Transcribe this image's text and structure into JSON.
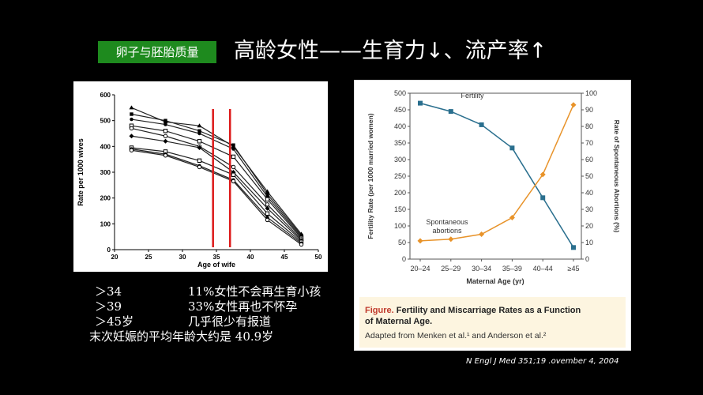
{
  "slide": {
    "badge": "卵子与胚胎质量",
    "title": "高龄女性——生育力↓、流产率↑",
    "notes": [
      {
        "k": "＞34",
        "v": "11%女性不会再生育小孩"
      },
      {
        "k": "＞39",
        "v": "33%女性再也不怀孕"
      },
      {
        "k": "＞45岁",
        "v": "几乎很少有报道"
      }
    ],
    "notes_last": "末次妊娠的平均年龄大约是 40.9岁",
    "citation": "N Engl J Med 351;19 .ovember 4, 2004",
    "colors": {
      "badge": "#1e8a1e",
      "red_line": "#dd1a1a",
      "fertility": "#2a6f8e",
      "abortion": "#e8932a"
    }
  },
  "chart_data": [
    {
      "type": "line",
      "xlabel": "Age of wife",
      "ylabel": "Rate per 1000 wives",
      "xlim": [
        20,
        50
      ],
      "ylim": [
        0,
        600
      ],
      "xticks": [
        20,
        25,
        30,
        35,
        40,
        45,
        50
      ],
      "yticks": [
        0,
        100,
        200,
        300,
        400,
        500,
        600
      ],
      "vertical_lines": [
        34.5,
        37
      ],
      "series": [
        {
          "marker": "triangle",
          "x": [
            22.5,
            27.5,
            32.5,
            37.5,
            42.5,
            47.5
          ],
          "values": [
            550,
            495,
            480,
            400,
            225,
            60
          ]
        },
        {
          "marker": "square-filled",
          "x": [
            22.5,
            27.5,
            32.5,
            37.5,
            42.5,
            47.5
          ],
          "values": [
            525,
            500,
            460,
            405,
            215,
            55
          ]
        },
        {
          "marker": "circle-filled",
          "x": [
            22.5,
            27.5,
            32.5,
            37.5,
            42.5,
            47.5
          ],
          "values": [
            505,
            485,
            450,
            390,
            205,
            50
          ]
        },
        {
          "marker": "square-open",
          "x": [
            22.5,
            27.5,
            32.5,
            37.5,
            42.5,
            47.5
          ],
          "values": [
            480,
            460,
            420,
            360,
            195,
            45
          ]
        },
        {
          "marker": "circle-open",
          "x": [
            22.5,
            27.5,
            32.5,
            37.5,
            42.5,
            47.5
          ],
          "values": [
            470,
            440,
            400,
            320,
            175,
            40
          ]
        },
        {
          "marker": "diamond-filled",
          "x": [
            22.5,
            27.5,
            32.5,
            37.5,
            42.5,
            47.5
          ],
          "values": [
            440,
            420,
            395,
            300,
            160,
            35
          ]
        },
        {
          "marker": "square-open",
          "x": [
            22.5,
            27.5,
            32.5,
            37.5,
            42.5,
            47.5
          ],
          "values": [
            395,
            380,
            345,
            290,
            140,
            30
          ]
        },
        {
          "marker": "circle-filled",
          "x": [
            22.5,
            27.5,
            32.5,
            37.5,
            42.5,
            47.5
          ],
          "values": [
            390,
            370,
            325,
            270,
            125,
            25
          ]
        },
        {
          "marker": "circle-open",
          "x": [
            22.5,
            27.5,
            32.5,
            37.5,
            42.5,
            47.5
          ],
          "values": [
            385,
            365,
            320,
            265,
            115,
            20
          ]
        }
      ]
    },
    {
      "type": "line",
      "categories": [
        "20–24",
        "25–29",
        "30–34",
        "35–39",
        "40–44",
        "≥45"
      ],
      "xlabel": "Maternal Age (yr)",
      "ylabel": "Fertility Rate (per 1000 married women)",
      "ylabel_right": "Rate of Spontaneous Abortions (%)",
      "ylim": [
        0,
        500
      ],
      "yticks": [
        0,
        50,
        100,
        150,
        200,
        250,
        300,
        350,
        400,
        450,
        500
      ],
      "ylim_right": [
        0,
        100
      ],
      "yticks_right": [
        0,
        10,
        20,
        30,
        40,
        50,
        60,
        70,
        80,
        90,
        100
      ],
      "series": [
        {
          "name": "Fertility",
          "axis": "left",
          "marker": "square",
          "values": [
            470,
            445,
            405,
            335,
            185,
            35
          ]
        },
        {
          "name": "Spontaneous abortions",
          "label_lines": [
            "Spontaneous",
            "abortions"
          ],
          "axis": "right",
          "marker": "diamond",
          "values": [
            11,
            12,
            15,
            25,
            51,
            93
          ]
        }
      ],
      "caption": {
        "label": "Figure.",
        "title_line1": " Fertility and Miscarriage Rates as a Function",
        "title_line2": "of Maternal Age.",
        "source": "Adapted from Menken et al.¹ and Anderson et al.²"
      }
    }
  ]
}
